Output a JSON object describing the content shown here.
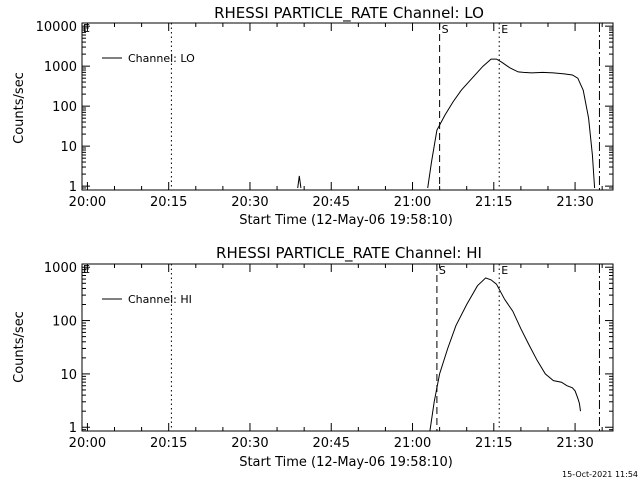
{
  "chart_data": [
    {
      "type": "line",
      "title": "RHESSI PARTICLE_RATE Channel: LO",
      "xlabel": "Start Time (12-May-06 19:58:10)",
      "ylabel": "Counts/sec",
      "yscale": "log",
      "xlim_minutes": [
        -1,
        97
      ],
      "ylim": [
        0.8,
        12000
      ],
      "xticks": [
        {
          "m": 0,
          "label": "20:00"
        },
        {
          "m": 15,
          "label": "20:15"
        },
        {
          "m": 30,
          "label": "20:30"
        },
        {
          "m": 45,
          "label": "20:45"
        },
        {
          "m": 60,
          "label": "21:00"
        },
        {
          "m": 75,
          "label": "21:15"
        },
        {
          "m": 90,
          "label": "21:30"
        }
      ],
      "yticks": [
        {
          "v": 1,
          "label": "1"
        },
        {
          "v": 10,
          "label": "10"
        },
        {
          "v": 100,
          "label": "100"
        },
        {
          "v": 1000,
          "label": "1000"
        },
        {
          "v": 10000,
          "label": "10000"
        }
      ],
      "legend": {
        "label": "Channel: LO",
        "position": "top-left"
      },
      "markers": [
        {
          "m": 15.5,
          "style": "dotted",
          "label": ""
        },
        {
          "m": 65,
          "style": "dashed",
          "label": "S"
        },
        {
          "m": 76,
          "style": "dotted",
          "label": "E"
        },
        {
          "m": 94.5,
          "style": "dashdot",
          "label": ""
        }
      ],
      "corner_label": "E",
      "series": [
        {
          "name": "Channel: LO",
          "segments": [
            [
              [
                38.8,
                0.9
              ],
              [
                39.1,
                1.8
              ],
              [
                39.4,
                0.9
              ]
            ],
            [
              [
                62.8,
                0.9
              ],
              [
                63.5,
                4
              ],
              [
                64.5,
                25
              ],
              [
                66,
                60
              ],
              [
                67.5,
                130
              ],
              [
                69,
                250
              ],
              [
                71,
                500
              ],
              [
                73,
                1000
              ],
              [
                74.5,
                1500
              ],
              [
                75.5,
                1500
              ],
              [
                76.5,
                1250
              ],
              [
                78,
                900
              ],
              [
                79.5,
                720
              ],
              [
                80.5,
                700
              ],
              [
                82,
                680
              ],
              [
                84,
                700
              ],
              [
                86,
                680
              ],
              [
                88,
                640
              ],
              [
                89.5,
                600
              ],
              [
                90.5,
                500
              ],
              [
                91.5,
                250
              ],
              [
                92.5,
                50
              ],
              [
                93.2,
                6
              ],
              [
                93.6,
                0.9
              ]
            ]
          ]
        }
      ]
    },
    {
      "type": "line",
      "title": "RHESSI PARTICLE_RATE Channel: HI",
      "xlabel": "Start Time (12-May-06 19:58:10)",
      "ylabel": "Counts/sec",
      "yscale": "log",
      "xlim_minutes": [
        -1,
        97
      ],
      "ylim": [
        0.85,
        1150
      ],
      "xticks": [
        {
          "m": 0,
          "label": "20:00"
        },
        {
          "m": 15,
          "label": "20:15"
        },
        {
          "m": 30,
          "label": "20:30"
        },
        {
          "m": 45,
          "label": "20:45"
        },
        {
          "m": 60,
          "label": "21:00"
        },
        {
          "m": 75,
          "label": "21:15"
        },
        {
          "m": 90,
          "label": "21:30"
        }
      ],
      "yticks": [
        {
          "v": 1,
          "label": "1"
        },
        {
          "v": 10,
          "label": "10"
        },
        {
          "v": 100,
          "label": "100"
        },
        {
          "v": 1000,
          "label": "1000"
        }
      ],
      "legend": {
        "label": "Channel: HI",
        "position": "top-left"
      },
      "markers": [
        {
          "m": 15.5,
          "style": "dotted",
          "label": ""
        },
        {
          "m": 64.5,
          "style": "dashed",
          "label": "S"
        },
        {
          "m": 76,
          "style": "dotted",
          "label": "E"
        },
        {
          "m": 94.5,
          "style": "dashdot",
          "label": ""
        }
      ],
      "corner_label": "E",
      "series": [
        {
          "name": "Channel: HI",
          "segments": [
            [
              [
                63.2,
                0.85
              ],
              [
                64,
                3
              ],
              [
                65,
                10
              ],
              [
                66.5,
                30
              ],
              [
                68,
                80
              ],
              [
                70,
                200
              ],
              [
                72,
                450
              ],
              [
                73.5,
                630
              ],
              [
                74.5,
                580
              ],
              [
                75.5,
                480
              ],
              [
                77,
                250
              ],
              [
                78.5,
                150
              ],
              [
                80,
                70
              ],
              [
                81.5,
                35
              ],
              [
                83,
                18
              ],
              [
                84.5,
                10
              ],
              [
                86,
                7.5
              ],
              [
                87.5,
                7
              ],
              [
                88.5,
                6
              ],
              [
                89.5,
                5.5
              ],
              [
                90,
                4.8
              ],
              [
                90.5,
                3.5
              ],
              [
                90.8,
                2.8
              ],
              [
                91,
                2
              ]
            ]
          ]
        }
      ]
    }
  ],
  "footer": {
    "timestamp": "15-Oct-2021 11:54"
  }
}
